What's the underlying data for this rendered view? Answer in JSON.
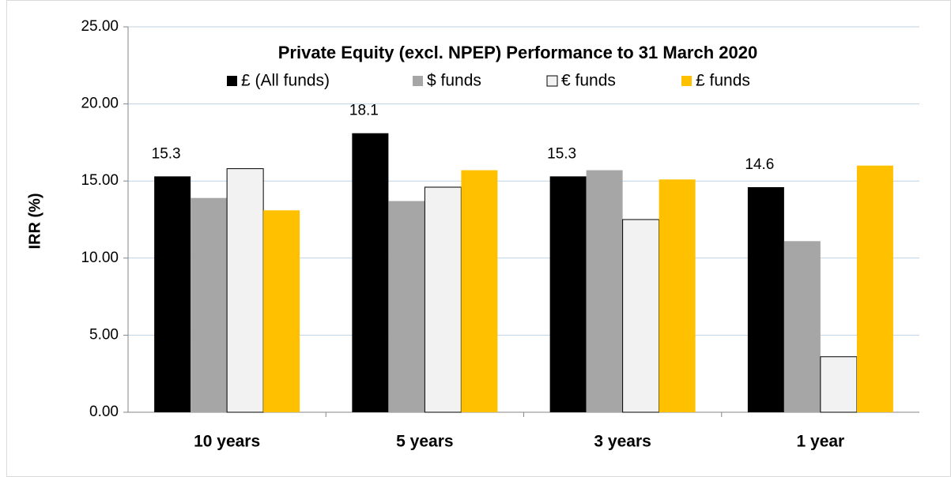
{
  "chart_data": {
    "type": "bar",
    "title": "Private Equity (excl. NPEP)  Performance to 31 March 2020",
    "y_label": "IRR (%)",
    "categories": [
      "10 years",
      "5 years",
      "3 years",
      "1 year"
    ],
    "series": [
      {
        "name": "£ (All funds)",
        "color": "#000000",
        "values": [
          15.3,
          18.1,
          15.3,
          14.6
        ],
        "data_labels": true
      },
      {
        "name": "$ funds",
        "color": "#a6a6a6",
        "values": [
          13.9,
          13.7,
          15.7,
          11.1
        ]
      },
      {
        "name": "€ funds",
        "color": "#f2f2f2",
        "stroke": "#000000",
        "values": [
          15.8,
          14.6,
          12.5,
          3.6
        ]
      },
      {
        "name": "£ funds",
        "color": "#ffc000",
        "values": [
          13.1,
          15.7,
          15.1,
          16.0
        ]
      }
    ],
    "ylim": [
      0,
      25
    ],
    "yticks": [
      {
        "value": 0,
        "label": "0.00"
      },
      {
        "value": 5,
        "label": "5.00"
      },
      {
        "value": 10,
        "label": "10.00"
      },
      {
        "value": 15,
        "label": "15.00"
      },
      {
        "value": 20,
        "label": "20.00"
      },
      {
        "value": 25,
        "label": "25.00"
      }
    ],
    "grid": true,
    "legend": "top"
  }
}
